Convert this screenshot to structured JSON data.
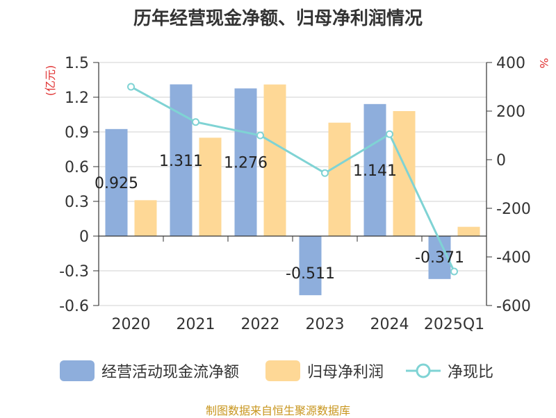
{
  "title": "历年经营现金净额、归母净利润情况",
  "footer": "制图数据来自恒生聚源数据库",
  "chart_data": {
    "type": "bar",
    "categories": [
      "2020",
      "2021",
      "2022",
      "2023",
      "2024",
      "2025Q1"
    ],
    "left_axis": {
      "unit_label": "(亿元)",
      "ylim": [
        -0.6,
        1.5
      ],
      "ticks": [
        "1.5",
        "1.2",
        "0.9",
        "0.6",
        "0.3",
        "0",
        "-0.3",
        "-0.6"
      ]
    },
    "right_axis": {
      "unit_label": "%",
      "ylim": [
        -600,
        400
      ],
      "ticks": [
        "400",
        "200",
        "0",
        "-200",
        "-400",
        "-600"
      ]
    },
    "series": [
      {
        "name": "经营活动现金流净额",
        "kind": "bar",
        "axis": "left",
        "color": "#8eaedc",
        "values": [
          0.925,
          1.311,
          1.276,
          -0.511,
          1.141,
          -0.371
        ],
        "labels": [
          "0.925",
          "1.311",
          "1.276",
          "-0.511",
          "1.141",
          "-0.371"
        ]
      },
      {
        "name": "归母净利润",
        "kind": "bar",
        "axis": "left",
        "color": "#fed896",
        "values": [
          0.31,
          0.85,
          1.31,
          0.98,
          1.08,
          0.08
        ]
      },
      {
        "name": "净现比",
        "kind": "line",
        "axis": "right",
        "color": "#7fd3d4",
        "values": [
          300,
          155,
          100,
          -55,
          105,
          -460
        ]
      }
    ],
    "grid": true,
    "legend_position": "bottom"
  }
}
